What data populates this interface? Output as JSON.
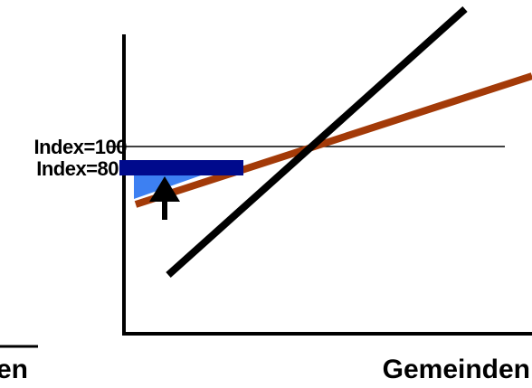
{
  "labels": {
    "index_100": "Index=100",
    "index_80": "Index=80",
    "x_axis": "Gemeinden",
    "cut_text": "en"
  },
  "colors": {
    "axis": "#000000",
    "black_line": "#000000",
    "brown_line": "#a33a08",
    "navy_bar": "#000a8c",
    "blue_fill": "#3d80f2",
    "arrow": "#000000"
  },
  "icons": {
    "arrow": "arrow-up-icon"
  }
}
